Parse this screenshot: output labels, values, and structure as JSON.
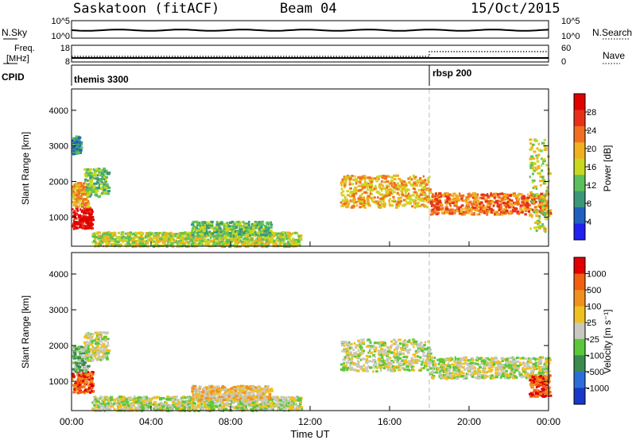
{
  "header": {
    "site": "Saskatoon (fitACF)",
    "beam": "Beam 04",
    "date": "15/Oct/2015"
  },
  "strip_panels": {
    "nsky": {
      "left_label": "N.Sky",
      "left_ticks": [
        "10^5",
        "10^0"
      ],
      "right_label": "N.Search",
      "right_ticks": [
        "10^5",
        "10^0"
      ]
    },
    "freq": {
      "left_label_1": "Freq.",
      "left_label_2": "[MHz]",
      "left_ticks": [
        "18",
        "8"
      ],
      "right_label": "Nave",
      "right_ticks": [
        "60",
        "0"
      ],
      "nave_step_hour": 18.0
    },
    "cpid": {
      "label": "CPID",
      "programs": [
        {
          "name": "themis 3300",
          "start_hour": 0.0
        },
        {
          "name": "rbsp 200",
          "start_hour": 18.0
        }
      ]
    }
  },
  "chart_data": [
    {
      "type": "heatmap",
      "panel": "power",
      "xlabel": "",
      "ylabel": "Slant Range [km]",
      "xlim": [
        0,
        24
      ],
      "ylim": [
        180,
        4600
      ],
      "yticks": [
        1000,
        2000,
        3000,
        4000
      ],
      "colorbar_label": "Power [dB]",
      "colorbar_ticks": [
        "28",
        "24",
        "20",
        "16",
        "12",
        "8",
        "4"
      ],
      "colors": [
        "#2020f0",
        "#2060c0",
        "#3c9878",
        "#5cc05a",
        "#c8d820",
        "#f0b020",
        "#f07020",
        "#e83018",
        "#e00000"
      ],
      "echo_regions": [
        {
          "t0": 0.0,
          "t1": 1.0,
          "r_lo": 700,
          "r_hi": 1300,
          "level": 8
        },
        {
          "t0": 0.0,
          "t1": 0.8,
          "r_lo": 1300,
          "r_hi": 2000,
          "level": 5
        },
        {
          "t0": 0.6,
          "t1": 1.8,
          "r_lo": 1600,
          "r_hi": 2400,
          "level": 3
        },
        {
          "t0": 0.0,
          "t1": 0.4,
          "r_lo": 2800,
          "r_hi": 3300,
          "level": 2
        },
        {
          "t0": 1.0,
          "t1": 11.5,
          "r_lo": 200,
          "r_hi": 600,
          "level": 4
        },
        {
          "t0": 6.0,
          "t1": 10.0,
          "r_lo": 500,
          "r_hi": 900,
          "level": 3
        },
        {
          "t0": 13.5,
          "t1": 18.0,
          "r_lo": 1300,
          "r_hi": 2200,
          "level": 5
        },
        {
          "t0": 18.0,
          "t1": 24.0,
          "r_lo": 1100,
          "r_hi": 1700,
          "level": 6
        },
        {
          "t0": 23.0,
          "t1": 24.0,
          "r_lo": 600,
          "r_hi": 3300,
          "level": 4
        }
      ]
    },
    {
      "type": "heatmap",
      "panel": "velocity",
      "xlabel": "Time UT",
      "ylabel": "Slant Range [km]",
      "xlim": [
        0,
        24
      ],
      "ylim": [
        180,
        4600
      ],
      "yticks": [
        1000,
        2000,
        3000,
        4000
      ],
      "xticks": [
        "00:00",
        "04:00",
        "08:00",
        "12:00",
        "16:00",
        "20:00",
        "00:00"
      ],
      "colorbar_label": "Velocity [m s⁻¹]",
      "colorbar_ticks": [
        "1000",
        "500",
        "100",
        "25",
        "-25",
        "-100",
        "-500",
        "-1000"
      ],
      "colors": [
        "#1838c8",
        "#2c6ed8",
        "#3a8a50",
        "#5ac83a",
        "#c8c8c0",
        "#f0c020",
        "#f09020",
        "#f06010",
        "#e00000"
      ],
      "echo_regions": [
        {
          "t0": 0.0,
          "t1": 1.0,
          "r_lo": 700,
          "r_hi": 1300,
          "level": 7
        },
        {
          "t0": 0.0,
          "t1": 0.8,
          "r_lo": 1300,
          "r_hi": 2000,
          "level": 3
        },
        {
          "t0": 0.6,
          "t1": 1.8,
          "r_lo": 1600,
          "r_hi": 2400,
          "level": 4
        },
        {
          "t0": 1.0,
          "t1": 11.5,
          "r_lo": 200,
          "r_hi": 600,
          "level": 4
        },
        {
          "t0": 6.0,
          "t1": 10.0,
          "r_lo": 500,
          "r_hi": 900,
          "level": 5
        },
        {
          "t0": 13.5,
          "t1": 18.0,
          "r_lo": 1300,
          "r_hi": 2200,
          "level": 4
        },
        {
          "t0": 18.0,
          "t1": 24.0,
          "r_lo": 1100,
          "r_hi": 1700,
          "level": 4
        },
        {
          "t0": 23.0,
          "t1": 24.0,
          "r_lo": 600,
          "r_hi": 1200,
          "level": 7
        }
      ]
    }
  ]
}
